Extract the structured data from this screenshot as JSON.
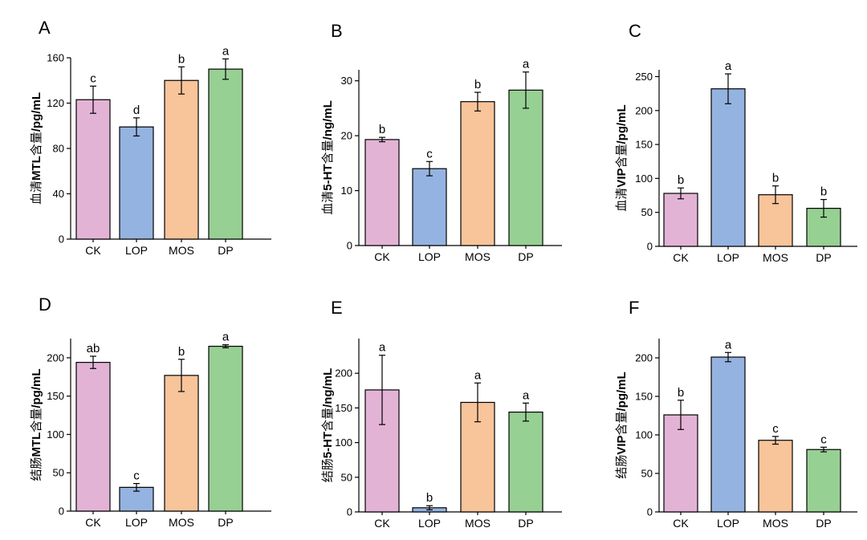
{
  "colors": {
    "CK": "#e3b3d6",
    "LOP": "#95b3e0",
    "MOS": "#f8c49a",
    "DP": "#97d093",
    "stroke": "#000000"
  },
  "chart_data": [
    {
      "panel": "A",
      "type": "bar",
      "categories": [
        "CK",
        "LOP",
        "MOS",
        "DP"
      ],
      "values": [
        123,
        99,
        140,
        150
      ],
      "errors": [
        12,
        8,
        12,
        9
      ],
      "significance": [
        "c",
        "d",
        "b",
        "a"
      ],
      "ylabel_prefix": "血清",
      "ylabel_bold": "MTL",
      "ylabel_suffix": "含量",
      "ylabel_unit": "/pg/mL",
      "ylim": [
        0,
        160
      ],
      "yticks": [
        0,
        40,
        80,
        120,
        160
      ]
    },
    {
      "panel": "B",
      "type": "bar",
      "categories": [
        "CK",
        "LOP",
        "MOS",
        "DP"
      ],
      "values": [
        19.3,
        14.0,
        26.2,
        28.3
      ],
      "errors": [
        0.4,
        1.3,
        1.7,
        3.3
      ],
      "significance": [
        "b",
        "c",
        "b",
        "a"
      ],
      "ylabel_prefix": "血清",
      "ylabel_bold": "5-HT",
      "ylabel_suffix": "含量",
      "ylabel_unit": "/ng/mL",
      "ylim": [
        0,
        32
      ],
      "yticks": [
        0,
        10,
        20,
        30
      ]
    },
    {
      "panel": "C",
      "type": "bar",
      "categories": [
        "CK",
        "LOP",
        "MOS",
        "DP"
      ],
      "values": [
        78,
        232,
        76,
        56
      ],
      "errors": [
        8,
        22,
        13,
        13
      ],
      "significance": [
        "b",
        "a",
        "b",
        "b"
      ],
      "ylabel_prefix": "血清",
      "ylabel_bold": "VIP",
      "ylabel_suffix": "含量",
      "ylabel_unit": "/pg/mL",
      "ylim": [
        0,
        260
      ],
      "yticks": [
        0,
        50,
        100,
        150,
        200,
        250
      ]
    },
    {
      "panel": "D",
      "type": "bar",
      "categories": [
        "CK",
        "LOP",
        "MOS",
        "DP"
      ],
      "values": [
        194,
        31,
        177,
        215
      ],
      "errors": [
        8,
        5,
        21,
        2
      ],
      "significance": [
        "ab",
        "c",
        "b",
        "a"
      ],
      "ylabel_prefix": "结肠",
      "ylabel_bold": "MTL",
      "ylabel_suffix": "含量",
      "ylabel_unit": "/pg/mL",
      "ylim": [
        0,
        225
      ],
      "yticks": [
        0,
        50,
        100,
        150,
        200
      ]
    },
    {
      "panel": "E",
      "type": "bar",
      "categories": [
        "CK",
        "LOP",
        "MOS",
        "DP"
      ],
      "values": [
        176,
        6,
        158,
        144
      ],
      "errors": [
        50,
        3,
        28,
        13
      ],
      "significance": [
        "a",
        "b",
        "a",
        "a"
      ],
      "ylabel_prefix": "结肠",
      "ylabel_bold": "5-HT",
      "ylabel_suffix": "含量",
      "ylabel_unit": "/ng/mL",
      "ylim": [
        0,
        250
      ],
      "yticks": [
        0,
        50,
        100,
        150,
        200
      ]
    },
    {
      "panel": "F",
      "type": "bar",
      "categories": [
        "CK",
        "LOP",
        "MOS",
        "DP"
      ],
      "values": [
        126,
        201,
        93,
        81
      ],
      "errors": [
        19,
        6,
        5,
        3
      ],
      "significance": [
        "b",
        "a",
        "c",
        "c"
      ],
      "ylabel_prefix": "结肠",
      "ylabel_bold": "VIP",
      "ylabel_suffix": "含量",
      "ylabel_unit": "/pg/mL",
      "ylim": [
        0,
        225
      ],
      "yticks": [
        0,
        50,
        100,
        150,
        200
      ]
    }
  ]
}
